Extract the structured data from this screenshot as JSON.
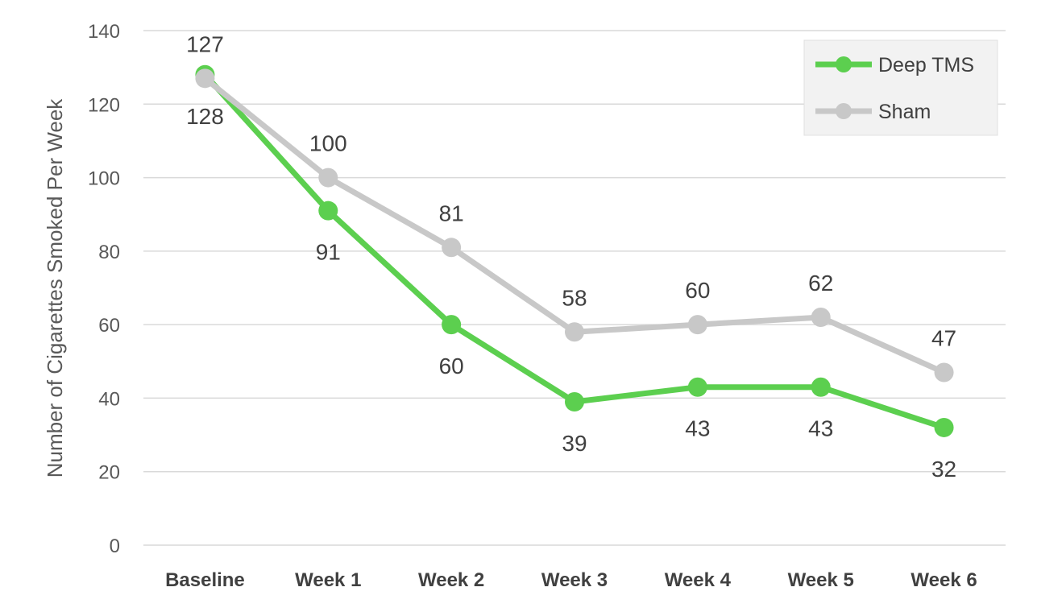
{
  "chart_data": {
    "type": "line",
    "categories": [
      "Baseline",
      "Week 1",
      "Week 2",
      "Week 3",
      "Week 4",
      "Week 5",
      "Week 6"
    ],
    "series": [
      {
        "name": "Deep TMS",
        "color": "#5ccf4f",
        "values": [
          128,
          91,
          60,
          39,
          43,
          43,
          32
        ]
      },
      {
        "name": "Sham",
        "color": "#c8c8c8",
        "values": [
          127,
          100,
          81,
          58,
          60,
          62,
          47
        ]
      }
    ],
    "title": "",
    "xlabel": "",
    "ylabel": "Number of Cigarettes Smoked Per Week",
    "ylim": [
      0,
      140
    ],
    "yticks": [
      0,
      20,
      40,
      60,
      80,
      100,
      120,
      140
    ],
    "grid": true,
    "legend": "top-right",
    "data_label_position": {
      "Deep TMS": "below",
      "Sham": "above"
    }
  }
}
